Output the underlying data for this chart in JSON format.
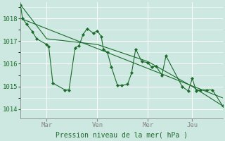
{
  "background_color": "#cce8e0",
  "plot_bg": "#cce8e0",
  "grid_color": "#ffffff",
  "line_color": "#1a6b2a",
  "marker_color": "#1a6b2a",
  "axis_color": "#888888",
  "text_color": "#1a6b2a",
  "xlabel_text": "Pression niveau de la mer( hPa )",
  "yticks": [
    1014,
    1015,
    1016,
    1017,
    1018
  ],
  "ylim": [
    1013.6,
    1018.7
  ],
  "xlim": [
    0,
    100
  ],
  "xtick_labels": [
    "Mar",
    "Ven",
    "Mer",
    "Jeu"
  ],
  "xtick_pos": [
    13,
    38,
    63,
    85
  ],
  "line1_x": [
    0,
    1,
    3,
    6,
    8,
    13,
    14,
    16,
    22,
    24,
    27,
    29,
    31,
    33,
    36,
    38,
    40,
    41,
    43,
    45,
    48,
    50,
    53,
    55,
    57,
    60,
    63,
    65,
    67,
    70,
    72,
    80,
    83,
    85,
    87,
    89,
    92,
    95,
    100
  ],
  "line1_y": [
    1018.6,
    1018.0,
    1017.75,
    1017.4,
    1017.1,
    1016.85,
    1016.75,
    1015.15,
    1014.85,
    1014.85,
    1016.7,
    1016.8,
    1017.3,
    1017.55,
    1017.35,
    1017.45,
    1017.2,
    1016.65,
    1016.5,
    1015.85,
    1015.05,
    1015.05,
    1015.1,
    1015.6,
    1016.65,
    1016.1,
    1016.05,
    1015.85,
    1015.9,
    1015.5,
    1016.35,
    1015.0,
    1014.8,
    1015.35,
    1014.8,
    1014.85,
    1014.85,
    1014.85,
    1014.15
  ],
  "line2_x": [
    0,
    13,
    38,
    63,
    85,
    100
  ],
  "line2_y": [
    1018.6,
    1017.1,
    1016.85,
    1016.1,
    1015.0,
    1014.15
  ],
  "trend_x": [
    0,
    100
  ],
  "trend_y": [
    1018.0,
    1014.5
  ]
}
